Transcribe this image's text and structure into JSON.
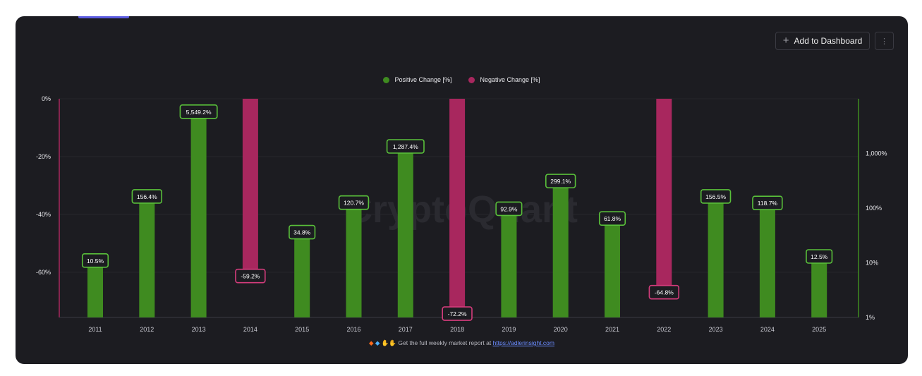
{
  "toolbar": {
    "add_label": "Add to Dashboard",
    "more_icon": "more-vertical-icon",
    "add_icon": "plus-icon"
  },
  "legend": {
    "positive_label": "Positive Change [%]",
    "negative_label": "Negative Change [%]"
  },
  "footer": {
    "icons": [
      "orange-diamond-icon",
      "blue-diamond-icon",
      "yellow-hands-icon"
    ],
    "text": "Get the full weekly market report at",
    "link": "https://adlerinsight.com"
  },
  "watermark": "CryptoQuant",
  "colors": {
    "background": "#1c1c21",
    "positive": "#3f8b20",
    "negative": "#a8275e",
    "positive_label_border": "#59c03a",
    "negative_label_border": "#d43c7c"
  },
  "chart_data": {
    "type": "bar",
    "categories": [
      "2011",
      "2012",
      "2013",
      "2014",
      "2015",
      "2016",
      "2017",
      "2018",
      "2019",
      "2020",
      "2021",
      "2022",
      "2023",
      "2024",
      "2025"
    ],
    "series": [
      {
        "name": "Positive Change [%]",
        "axis": "right",
        "scale": "log",
        "values": [
          10.5,
          156.4,
          5549.2,
          null,
          34.8,
          120.7,
          1287.4,
          null,
          92.9,
          299.1,
          61.8,
          null,
          156.5,
          118.7,
          12.5
        ],
        "labels": [
          "10.5%",
          "156.4%",
          "5,549.2%",
          null,
          "34.8%",
          "120.7%",
          "1,287.4%",
          null,
          "92.9%",
          "299.1%",
          "61.8%",
          null,
          "156.5%",
          "118.7%",
          "12.5%"
        ]
      },
      {
        "name": "Negative Change [%]",
        "axis": "left",
        "scale": "linear",
        "values": [
          null,
          null,
          null,
          -59.2,
          null,
          null,
          null,
          -72.2,
          null,
          null,
          null,
          -64.8,
          null,
          null,
          null
        ],
        "labels": [
          null,
          null,
          null,
          "-59.2%",
          null,
          null,
          null,
          "-72.2%",
          null,
          null,
          null,
          "-64.8%",
          null,
          null,
          null
        ]
      }
    ],
    "left_axis": {
      "ticks": [
        "0%",
        "-20%",
        "-40%",
        "-60%"
      ],
      "tick_values": [
        0,
        -20,
        -40,
        -60
      ],
      "range": [
        0,
        -75
      ]
    },
    "right_axis": {
      "ticks": [
        "1,000%",
        "100%",
        "10%",
        "1%"
      ],
      "tick_values": [
        1000,
        100,
        10,
        1
      ],
      "range": [
        1,
        10000
      ],
      "scale": "log"
    },
    "grid": true,
    "legend_position": "top-center"
  }
}
